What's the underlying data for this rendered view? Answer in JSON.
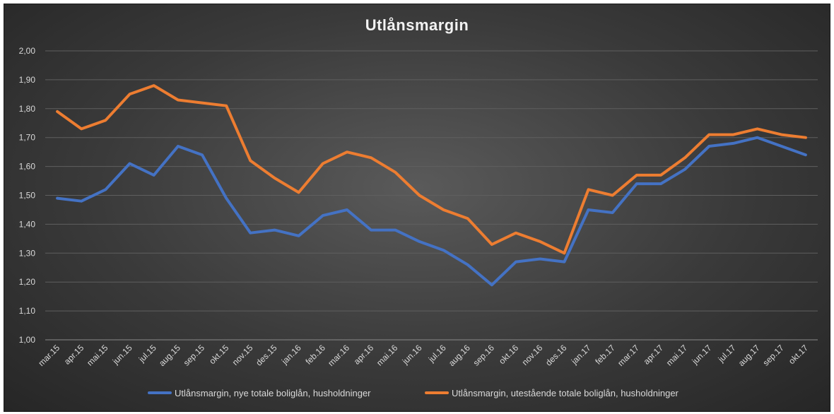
{
  "chart_data": {
    "type": "line",
    "title": "Utlånsmargin",
    "xlabel": "",
    "ylabel": "",
    "ylim": [
      1.0,
      2.0
    ],
    "yticks": [
      "1,00",
      "1,10",
      "1,20",
      "1,30",
      "1,40",
      "1,50",
      "1,60",
      "1,70",
      "1,80",
      "1,90",
      "2,00"
    ],
    "grid": true,
    "legend_position": "bottom",
    "categories": [
      "mar.15",
      "apr.15",
      "mai.15",
      "jun.15",
      "jul.15",
      "aug.15",
      "sep.15",
      "okt.15",
      "nov.15",
      "des.15",
      "jan.16",
      "feb.16",
      "mar.16",
      "apr.16",
      "mai.16",
      "jun.16",
      "jul.16",
      "aug.16",
      "sep.16",
      "okt.16",
      "nov.16",
      "des.16",
      "jan.17",
      "feb.17",
      "mar.17",
      "apr.17",
      "mai.17",
      "jun.17",
      "jul.17",
      "aug.17",
      "sep.17",
      "okt.17"
    ],
    "series": [
      {
        "name": "Utlånsmargin, nye totale boliglån, husholdninger",
        "color": "#4472c4",
        "values": [
          1.49,
          1.48,
          1.52,
          1.61,
          1.57,
          1.67,
          1.64,
          1.49,
          1.37,
          1.38,
          1.36,
          1.43,
          1.45,
          1.38,
          1.38,
          1.34,
          1.31,
          1.26,
          1.19,
          1.27,
          1.28,
          1.27,
          1.45,
          1.44,
          1.54,
          1.54,
          1.59,
          1.67,
          1.68,
          1.7,
          1.67,
          1.64
        ]
      },
      {
        "name": "Utlånsmargin, utestående totale boliglån, husholdninger",
        "color": "#ed7d31",
        "values": [
          1.79,
          1.73,
          1.76,
          1.85,
          1.88,
          1.83,
          1.82,
          1.81,
          1.62,
          1.56,
          1.51,
          1.61,
          1.65,
          1.63,
          1.58,
          1.5,
          1.45,
          1.42,
          1.33,
          1.37,
          1.34,
          1.3,
          1.52,
          1.5,
          1.57,
          1.57,
          1.63,
          1.71,
          1.71,
          1.73,
          1.71,
          1.7
        ]
      }
    ]
  }
}
